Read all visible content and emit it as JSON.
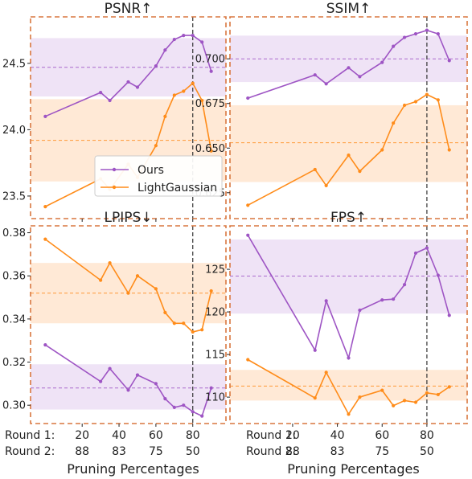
{
  "chart_data": [
    {
      "type": "line",
      "title": "PSNR↑",
      "x": [
        0,
        30,
        35,
        45,
        50,
        60,
        65,
        70,
        75,
        80,
        85,
        90
      ],
      "ylim": [
        23.33,
        24.85
      ],
      "yticks": [
        "23.5",
        "24.0",
        "24.5"
      ],
      "ytick_values": [
        23.5,
        24.0,
        24.5
      ],
      "series": [
        {
          "name": "Ours",
          "color": "#9e55c4",
          "values": [
            24.1,
            24.28,
            24.22,
            24.36,
            24.32,
            24.48,
            24.6,
            24.68,
            24.71,
            24.71,
            24.66,
            24.44
          ],
          "mean": 24.47,
          "band": [
            24.25,
            24.69
          ]
        },
        {
          "name": "LightGaussian",
          "color": "#ff8c1a",
          "values": [
            23.42,
            23.63,
            23.55,
            23.74,
            23.64,
            23.88,
            24.1,
            24.26,
            24.29,
            24.35,
            24.22,
            23.84
          ],
          "mean": 23.92,
          "band": [
            23.61,
            24.23
          ]
        }
      ],
      "vline": 80,
      "legend": "center-left"
    },
    {
      "type": "line",
      "title": "SSIM↑",
      "x": [
        0,
        30,
        35,
        45,
        50,
        60,
        65,
        70,
        75,
        80,
        85,
        90
      ],
      "ylim": [
        0.6105,
        0.7235
      ],
      "yticks": [
        "0.625",
        "0.650",
        "0.675",
        "0.700"
      ],
      "ytick_values": [
        0.625,
        0.65,
        0.675,
        0.7
      ],
      "series": [
        {
          "name": "Ours",
          "color": "#9e55c4",
          "values": [
            0.678,
            0.691,
            0.686,
            0.695,
            0.69,
            0.698,
            0.707,
            0.712,
            0.714,
            0.716,
            0.714,
            0.699
          ],
          "mean": 0.7,
          "band": [
            0.687,
            0.713
          ]
        },
        {
          "name": "LightGaussian",
          "color": "#ff8c1a",
          "values": [
            0.618,
            0.638,
            0.629,
            0.646,
            0.637,
            0.649,
            0.664,
            0.674,
            0.676,
            0.68,
            0.677,
            0.649
          ],
          "mean": 0.653,
          "band": [
            0.631,
            0.674
          ]
        }
      ],
      "vline": 80
    },
    {
      "type": "line",
      "title": "LPIPS↓",
      "x": [
        0,
        30,
        35,
        45,
        50,
        60,
        65,
        70,
        75,
        80,
        85,
        90
      ],
      "ylim": [
        0.2915,
        0.3832
      ],
      "yticks": [
        "0.30",
        "0.32",
        "0.34",
        "0.36",
        "0.38"
      ],
      "ytick_values": [
        0.3,
        0.32,
        0.34,
        0.36,
        0.38
      ],
      "series": [
        {
          "name": "Ours",
          "color": "#9e55c4",
          "values": [
            0.328,
            0.311,
            0.317,
            0.307,
            0.314,
            0.31,
            0.303,
            0.299,
            0.3,
            0.297,
            0.295,
            0.308
          ],
          "mean": 0.308,
          "band": [
            0.298,
            0.319
          ]
        },
        {
          "name": "LightGaussian",
          "color": "#ff8c1a",
          "values": [
            0.377,
            0.358,
            0.366,
            0.352,
            0.36,
            0.354,
            0.343,
            0.338,
            0.338,
            0.334,
            0.335,
            0.353
          ],
          "mean": 0.352,
          "band": [
            0.338,
            0.366
          ]
        }
      ],
      "vline": 80
    },
    {
      "type": "line",
      "title": "FPS↑",
      "x": [
        0,
        30,
        35,
        45,
        50,
        60,
        65,
        70,
        75,
        80,
        85,
        90
      ],
      "ylim": [
        106.9,
        130.1
      ],
      "yticks": [
        "110",
        "115",
        "120",
        "125"
      ],
      "ytick_values": [
        110,
        115,
        120,
        125
      ],
      "series": [
        {
          "name": "Ours",
          "color": "#9e55c4",
          "values": [
            129.0,
            115.5,
            121.3,
            114.6,
            120.2,
            121.4,
            121.5,
            123.2,
            126.9,
            127.5,
            124.3,
            119.6
          ],
          "mean": 124.2,
          "band": [
            119.8,
            128.5
          ]
        },
        {
          "name": "LightGaussian",
          "color": "#ff8c1a",
          "values": [
            114.4,
            109.9,
            112.9,
            108.0,
            110.0,
            110.8,
            109.0,
            109.6,
            109.4,
            110.5,
            110.3,
            111.2
          ],
          "mean": 111.3,
          "band": [
            109.6,
            113.2
          ]
        }
      ],
      "vline": 80
    }
  ],
  "xaxis": {
    "label": "Pruning Percentages",
    "round1_label": "Round 1:",
    "round2_label": "Round 2:",
    "tick_positions": [
      20,
      40,
      60,
      80
    ],
    "round1_ticks": [
      "20",
      "40",
      "60",
      "80"
    ],
    "round2_ticks": [
      "88",
      "83",
      "75",
      "50"
    ],
    "xlim": [
      -8,
      98
    ]
  },
  "legend": {
    "entries": [
      "Ours",
      "LightGaussian"
    ]
  },
  "colors": {
    "ours": "#9e55c4",
    "ours_band": "#efe3f6",
    "lg": "#ff8c1a",
    "lg_band": "#ffe9d6",
    "frame": "#d9773f",
    "vline": "#333333"
  }
}
